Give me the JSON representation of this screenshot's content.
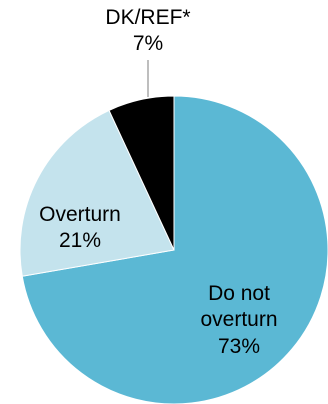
{
  "chart_data": {
    "type": "pie",
    "categories": [
      "Do not overturn",
      "Overturn",
      "DK/REF*"
    ],
    "values": [
      73,
      21,
      7
    ],
    "value_labels": [
      "73%",
      "21%",
      "7%"
    ],
    "label_lines": [
      [
        "Do not",
        "overturn",
        "73%"
      ],
      [
        "Overturn",
        "21%"
      ],
      [
        "DK/REF*",
        "7%"
      ]
    ],
    "colors": [
      "#5bb8d4",
      "#c4e3ed",
      "#000000"
    ],
    "start": "12 o'clock",
    "direction": "clockwise"
  }
}
